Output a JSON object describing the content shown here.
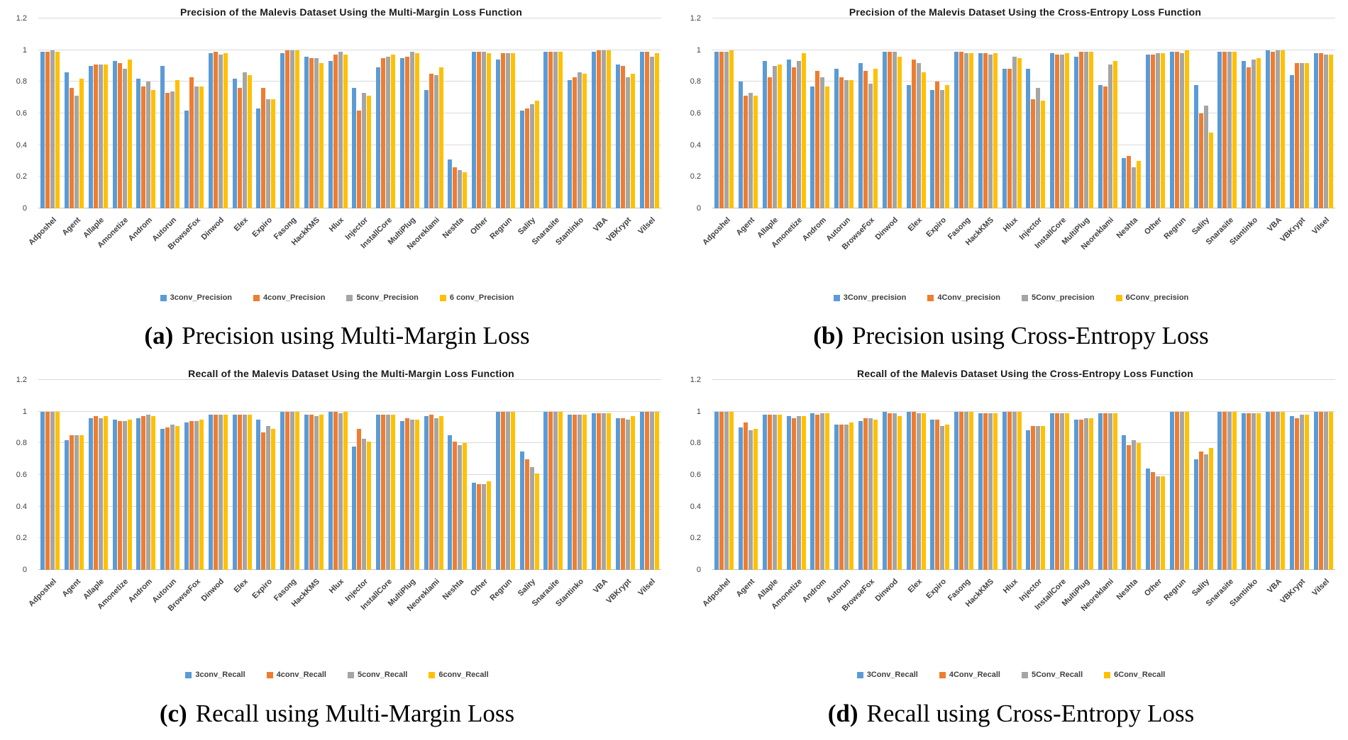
{
  "figure": {
    "captions": [
      {
        "label": "(a)",
        "text": "Precision using Multi-Margin Loss"
      },
      {
        "label": "(b)",
        "text": "Precision using Cross-Entropy Loss"
      },
      {
        "label": "(c)",
        "text": "Recall using Multi-Margin Loss"
      },
      {
        "label": "(d)",
        "text": "Recall using Cross-Entropy Loss"
      }
    ]
  },
  "chart_data": [
    {
      "id": "a",
      "type": "bar",
      "title": "Precision of the Malevis Dataset Using the Multi-Margin Loss Function",
      "ylim": [
        0,
        1.2
      ],
      "yticks": [
        0,
        0.2,
        0.4,
        0.6,
        0.8,
        1,
        1.2
      ],
      "grid": true,
      "legend_position": "bottom",
      "categories": [
        "Adposhel",
        "Agent",
        "Allaple",
        "Amonetize",
        "Androm",
        "Autorun",
        "BrowseFox",
        "Dinwod",
        "Elex",
        "Expiro",
        "Fasong",
        "HackKMS",
        "Hlux",
        "Injector",
        "InstallCore",
        "MultiPlug",
        "Neoreklami",
        "Neshta",
        "Other",
        "Regrun",
        "Sality",
        "Snarasite",
        "Stantinko",
        "VBA",
        "VBKrypt",
        "Vilsel"
      ],
      "series": [
        {
          "name": "3conv_Precision",
          "color": "#5B9BD5",
          "values": [
            0.99,
            0.86,
            0.9,
            0.93,
            0.82,
            0.9,
            0.62,
            0.98,
            0.82,
            0.63,
            0.98,
            0.96,
            0.93,
            0.76,
            0.89,
            0.95,
            0.75,
            0.31,
            0.99,
            0.94,
            0.62,
            0.99,
            0.81,
            0.99,
            0.91,
            0.99
          ]
        },
        {
          "name": "4conv_Precision",
          "color": "#ED7D31",
          "values": [
            0.99,
            0.76,
            0.91,
            0.92,
            0.77,
            0.73,
            0.83,
            0.99,
            0.76,
            0.76,
            1.0,
            0.95,
            0.97,
            0.62,
            0.95,
            0.96,
            0.85,
            0.26,
            0.99,
            0.98,
            0.63,
            0.99,
            0.83,
            1.0,
            0.9,
            0.99
          ]
        },
        {
          "name": "5conv_Precision",
          "color": "#A5A5A5",
          "values": [
            1.0,
            0.71,
            0.91,
            0.88,
            0.8,
            0.74,
            0.77,
            0.97,
            0.86,
            0.69,
            1.0,
            0.95,
            0.99,
            0.73,
            0.96,
            0.99,
            0.84,
            0.24,
            0.99,
            0.98,
            0.66,
            0.99,
            0.86,
            1.0,
            0.83,
            0.96
          ]
        },
        {
          "name": "6 conv_Precision",
          "color": "#FFC000",
          "values": [
            0.99,
            0.82,
            0.91,
            0.94,
            0.75,
            0.81,
            0.77,
            0.98,
            0.84,
            0.69,
            1.0,
            0.92,
            0.97,
            0.71,
            0.97,
            0.98,
            0.89,
            0.23,
            0.98,
            0.98,
            0.68,
            0.99,
            0.85,
            1.0,
            0.85,
            0.98
          ]
        }
      ]
    },
    {
      "id": "b",
      "type": "bar",
      "title": "Precision of the Malevis Dataset Using the Cross-Entropy Loss Function",
      "ylim": [
        0,
        1.2
      ],
      "yticks": [
        0,
        0.2,
        0.4,
        0.6,
        0.8,
        1,
        1.2
      ],
      "grid": true,
      "legend_position": "bottom",
      "categories": [
        "Adposhel",
        "Agent",
        "Allaple",
        "Amonetize",
        "Androm",
        "Autorun",
        "BrowseFox",
        "Dinwod",
        "Elex",
        "Expiro",
        "Fasong",
        "HackKMS",
        "Hlux",
        "Injector",
        "InstallCore",
        "MultiPlug",
        "Neoreklami",
        "Neshta",
        "Other",
        "Regrun",
        "Sality",
        "Snarasite",
        "Stantinko",
        "VBA",
        "VBKrypt",
        "Vilsel"
      ],
      "series": [
        {
          "name": "3Conv_precision",
          "color": "#5B9BD5",
          "values": [
            0.99,
            0.8,
            0.93,
            0.94,
            0.77,
            0.88,
            0.92,
            0.99,
            0.78,
            0.75,
            0.99,
            0.98,
            0.88,
            0.88,
            0.98,
            0.96,
            0.78,
            0.32,
            0.97,
            0.99,
            0.78,
            0.99,
            0.93,
            1.0,
            0.84,
            0.98
          ]
        },
        {
          "name": "4Conv_precision",
          "color": "#ED7D31",
          "values": [
            0.99,
            0.71,
            0.83,
            0.89,
            0.87,
            0.83,
            0.87,
            0.99,
            0.94,
            0.8,
            0.99,
            0.98,
            0.88,
            0.69,
            0.97,
            0.99,
            0.77,
            0.33,
            0.97,
            0.99,
            0.6,
            0.99,
            0.89,
            0.99,
            0.92,
            0.98
          ]
        },
        {
          "name": "5Conv_precision",
          "color": "#A5A5A5",
          "values": [
            0.99,
            0.73,
            0.9,
            0.93,
            0.83,
            0.81,
            0.79,
            0.99,
            0.92,
            0.75,
            0.98,
            0.97,
            0.96,
            0.76,
            0.97,
            0.99,
            0.91,
            0.26,
            0.98,
            0.98,
            0.65,
            0.99,
            0.94,
            1.0,
            0.92,
            0.97
          ]
        },
        {
          "name": "6Conv_precision",
          "color": "#FFC000",
          "values": [
            1.0,
            0.71,
            0.91,
            0.98,
            0.77,
            0.81,
            0.88,
            0.96,
            0.86,
            0.78,
            0.98,
            0.98,
            0.95,
            0.68,
            0.98,
            0.99,
            0.93,
            0.3,
            0.98,
            1.0,
            0.48,
            0.99,
            0.95,
            1.0,
            0.92,
            0.97
          ]
        }
      ]
    },
    {
      "id": "c",
      "type": "bar",
      "title": "Recall of the Malevis Dataset Using the Multi-Margin Loss Function",
      "ylim": [
        0,
        1.2
      ],
      "yticks": [
        0,
        0.2,
        0.4,
        0.6,
        0.8,
        1,
        1.2
      ],
      "grid": true,
      "legend_position": "bottom",
      "categories": [
        "Adposhel",
        "Agent",
        "Allaple",
        "Amonetize",
        "Androm",
        "Autorun",
        "BrowseFox",
        "Dinwod",
        "Elex",
        "Expiro",
        "Fasong",
        "HackKMS",
        "Hlux",
        "Injector",
        "InstallCore",
        "MultiPlug",
        "Neoreklami",
        "Neshta",
        "Other",
        "Regrun",
        "Sality",
        "Snarasite",
        "Stantinko",
        "VBA",
        "VBKrypt",
        "Vilsel"
      ],
      "series": [
        {
          "name": "3conv_Recall",
          "color": "#5B9BD5",
          "values": [
            1.0,
            0.82,
            0.96,
            0.95,
            0.96,
            0.89,
            0.93,
            0.98,
            0.98,
            0.95,
            1.0,
            0.98,
            1.0,
            0.78,
            0.98,
            0.94,
            0.97,
            0.85,
            0.55,
            1.0,
            0.75,
            1.0,
            0.98,
            0.99,
            0.96,
            1.0
          ]
        },
        {
          "name": "4conv_Recall",
          "color": "#ED7D31",
          "values": [
            1.0,
            0.85,
            0.97,
            0.94,
            0.97,
            0.9,
            0.94,
            0.98,
            0.98,
            0.87,
            1.0,
            0.98,
            1.0,
            0.89,
            0.98,
            0.96,
            0.98,
            0.81,
            0.54,
            1.0,
            0.7,
            1.0,
            0.98,
            0.99,
            0.96,
            1.0
          ]
        },
        {
          "name": "5conv_Recall",
          "color": "#A5A5A5",
          "values": [
            1.0,
            0.85,
            0.96,
            0.94,
            0.98,
            0.92,
            0.94,
            0.98,
            0.98,
            0.91,
            1.0,
            0.97,
            0.99,
            0.83,
            0.98,
            0.95,
            0.96,
            0.79,
            0.54,
            1.0,
            0.65,
            1.0,
            0.98,
            0.99,
            0.95,
            1.0
          ]
        },
        {
          "name": "6conv_Recall",
          "color": "#FFC000",
          "values": [
            1.0,
            0.85,
            0.97,
            0.95,
            0.97,
            0.91,
            0.95,
            0.98,
            0.98,
            0.89,
            1.0,
            0.98,
            1.0,
            0.81,
            0.98,
            0.95,
            0.97,
            0.8,
            0.56,
            1.0,
            0.61,
            1.0,
            0.98,
            0.99,
            0.97,
            1.0
          ]
        }
      ]
    },
    {
      "id": "d",
      "type": "bar",
      "title": "Recall of the Malevis Dataset Using the Cross-Entropy Loss Function",
      "ylim": [
        0,
        1.2
      ],
      "yticks": [
        0,
        0.2,
        0.4,
        0.6,
        0.8,
        1,
        1.2
      ],
      "grid": true,
      "legend_position": "bottom",
      "categories": [
        "Adposhel",
        "Agent",
        "Allaple",
        "Amonetize",
        "Androm",
        "Autorun",
        "BrowseFox",
        "Dinwod",
        "Elex",
        "Expiro",
        "Fasong",
        "HackKMS",
        "Hlux",
        "Injector",
        "InstallCore",
        "MultiPlug",
        "Neoreklami",
        "Neshta",
        "Other",
        "Regrun",
        "Sality",
        "Snarasite",
        "Stantinko",
        "VBA",
        "VBKrypt",
        "Vilsel"
      ],
      "series": [
        {
          "name": "3Conv_Recall",
          "color": "#5B9BD5",
          "values": [
            1.0,
            0.9,
            0.98,
            0.97,
            0.99,
            0.92,
            0.94,
            1.0,
            1.0,
            0.95,
            1.0,
            0.99,
            1.0,
            0.88,
            0.99,
            0.95,
            0.99,
            0.85,
            0.64,
            1.0,
            0.7,
            1.0,
            0.99,
            1.0,
            0.97,
            1.0
          ]
        },
        {
          "name": "4Conv_Recall",
          "color": "#ED7D31",
          "values": [
            1.0,
            0.93,
            0.98,
            0.96,
            0.98,
            0.92,
            0.96,
            0.99,
            1.0,
            0.95,
            1.0,
            0.99,
            1.0,
            0.91,
            0.99,
            0.95,
            0.99,
            0.79,
            0.62,
            1.0,
            0.75,
            1.0,
            0.99,
            1.0,
            0.96,
            1.0
          ]
        },
        {
          "name": "5Conv_Recall",
          "color": "#A5A5A5",
          "values": [
            1.0,
            0.88,
            0.98,
            0.97,
            0.99,
            0.92,
            0.96,
            0.99,
            0.99,
            0.91,
            1.0,
            0.99,
            1.0,
            0.91,
            0.99,
            0.96,
            0.99,
            0.82,
            0.59,
            1.0,
            0.73,
            1.0,
            0.99,
            1.0,
            0.98,
            1.0
          ]
        },
        {
          "name": "6Conv_Recall",
          "color": "#FFC000",
          "values": [
            1.0,
            0.89,
            0.98,
            0.97,
            0.99,
            0.93,
            0.95,
            0.97,
            0.99,
            0.92,
            1.0,
            0.99,
            1.0,
            0.91,
            0.99,
            0.96,
            0.99,
            0.8,
            0.59,
            1.0,
            0.77,
            1.0,
            0.99,
            1.0,
            0.98,
            1.0
          ]
        }
      ]
    }
  ]
}
